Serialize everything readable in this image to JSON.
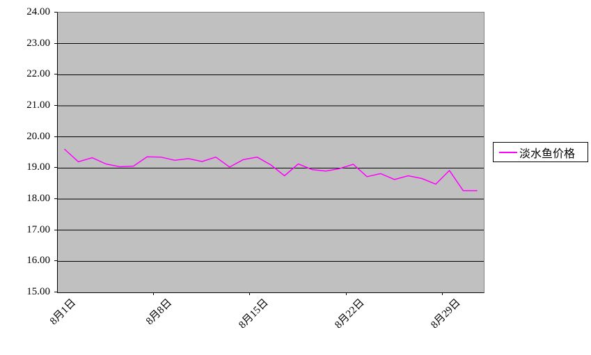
{
  "chart_data": {
    "type": "line",
    "title": "",
    "categories": [
      "8月1日",
      "8月2日",
      "8月3日",
      "8月4日",
      "8月5日",
      "8月6日",
      "8月7日",
      "8月8日",
      "8月9日",
      "8月10日",
      "8月11日",
      "8月12日",
      "8月13日",
      "8月14日",
      "8月15日",
      "8月16日",
      "8月17日",
      "8月18日",
      "8月19日",
      "8月20日",
      "8月21日",
      "8月22日",
      "8月23日",
      "8月24日",
      "8月25日",
      "8月26日",
      "8月27日",
      "8月28日",
      "8月29日",
      "8月30日",
      "8月31日"
    ],
    "series": [
      {
        "name": "淡水鱼价格",
        "color": "#FF00FF",
        "values": [
          19.6,
          19.2,
          19.33,
          19.13,
          19.04,
          19.06,
          19.36,
          19.35,
          19.25,
          19.3,
          19.21,
          19.35,
          19.03,
          19.27,
          19.35,
          19.1,
          18.75,
          19.13,
          18.95,
          18.9,
          18.98,
          19.12,
          18.72,
          18.82,
          18.63,
          18.75,
          18.66,
          18.48,
          18.92,
          18.27,
          18.27
        ]
      }
    ],
    "ylim": [
      15,
      24
    ],
    "y_tick_step": 1,
    "y_tick_labels": [
      "24.00",
      "23.00",
      "22.00",
      "21.00",
      "20.00",
      "19.00",
      "18.00",
      "17.00",
      "16.00",
      "15.00"
    ],
    "x_tick_labels": [
      {
        "label": "8月1日",
        "index": 0
      },
      {
        "label": "8月8日",
        "index": 7
      },
      {
        "label": "8月15日",
        "index": 14
      },
      {
        "label": "8月22日",
        "index": 21
      },
      {
        "label": "8月29日",
        "index": 28
      }
    ],
    "x_tick_interval": 7,
    "grid": "horizontal",
    "gridline_color": "#000000",
    "plot_background": "#C0C0C0",
    "page_background": "#FFFFFF",
    "legend_position": "right"
  },
  "legend": {
    "label": "淡水鱼价格"
  }
}
